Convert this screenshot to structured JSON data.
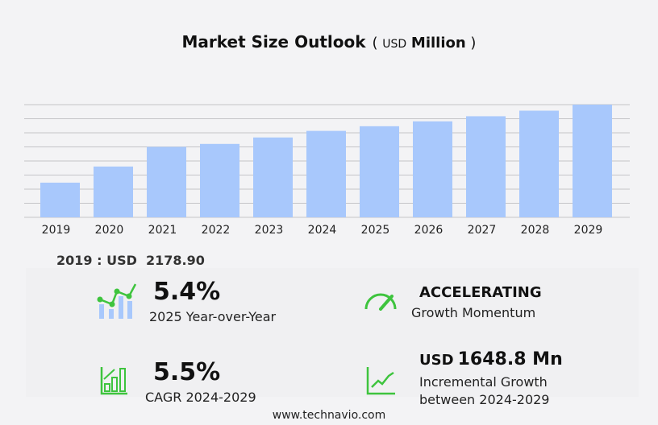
{
  "title": {
    "main": "Market Size Outlook",
    "unit_prefix": "USD",
    "unit": "Million"
  },
  "chart_data": {
    "type": "bar",
    "title": "Market Size Outlook (USD Million)",
    "categories": [
      "2019",
      "2020",
      "2021",
      "2022",
      "2023",
      "2024",
      "2025",
      "2026",
      "2027",
      "2028",
      "2029"
    ],
    "values": [
      2178.9,
      3192,
      4424,
      4611,
      5017,
      5430,
      5723,
      6030,
      6350,
      6700,
      7079
    ],
    "ylim": [
      0,
      7079
    ],
    "grid": true,
    "color": "#a8c8fc"
  },
  "base_year": {
    "label": "2019 : USD",
    "value": "2178.90"
  },
  "metrics": {
    "yoy": {
      "value": "5.4%",
      "label": "2025 Year-over-Year"
    },
    "momentum": {
      "value": "ACCELERATING",
      "label": "Growth Momentum"
    },
    "cagr": {
      "value": "5.5%",
      "label": "CAGR 2024-2029"
    },
    "incremental": {
      "prefix": "USD",
      "value": "1648.8 Mn",
      "label1": "Incremental Growth",
      "label2": "between 2024-2029"
    }
  },
  "footer": "www.technavio.com",
  "colors": {
    "accent": "#3ec43e",
    "bar": "#a8c8fc"
  }
}
